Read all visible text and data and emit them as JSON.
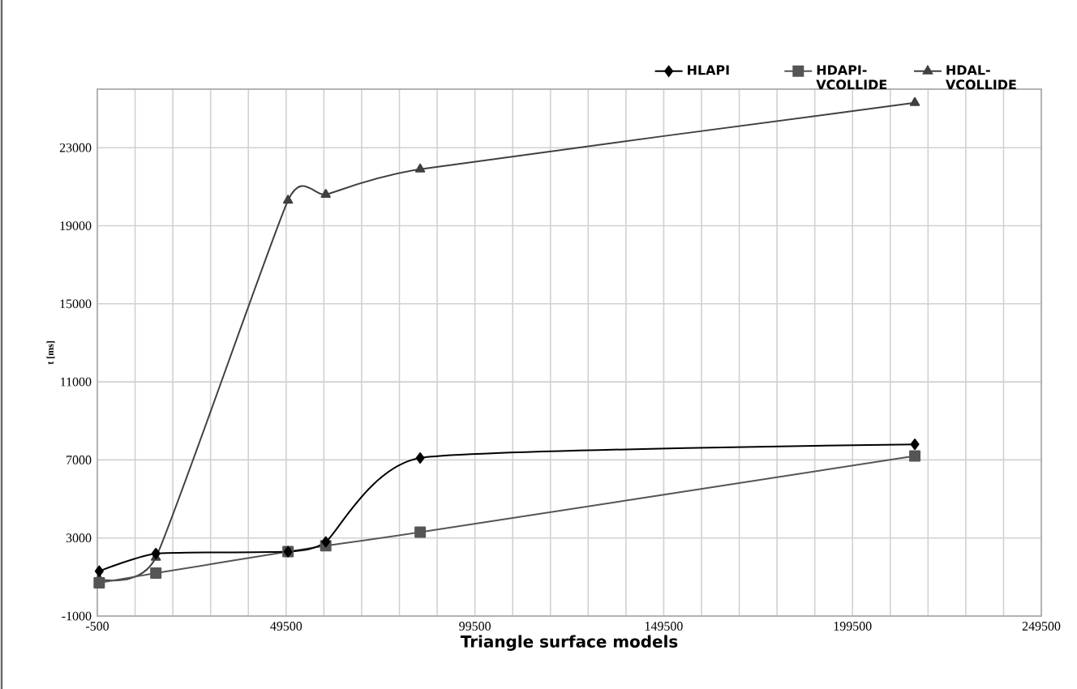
{
  "chart_data": {
    "type": "line",
    "xlabel": "Triangle surface models",
    "ylabel": "t [ms]",
    "x": [
      0,
      15000,
      50000,
      60000,
      85000,
      216000
    ],
    "series": [
      {
        "name": "HLAPI",
        "color": "#000000",
        "marker": "diamond",
        "values": [
          1300,
          2200,
          2300,
          2800,
          7100,
          7800
        ]
      },
      {
        "name": "HDAPI-VCOLLIDE",
        "color": "#555555",
        "marker": "square",
        "values": [
          700,
          1200,
          2300,
          2600,
          3300,
          7200
        ]
      },
      {
        "name": "HDAL-VCOLLIDE",
        "color": "#404040",
        "marker": "triangle",
        "values": [
          900,
          2000,
          20300,
          20600,
          21900,
          25300
        ]
      }
    ],
    "xlim": [
      -500,
      249500
    ],
    "ylim": [
      -1000,
      26000
    ],
    "xticks": [
      -500,
      49500,
      99500,
      149500,
      199500,
      249500
    ],
    "yticks": [
      -1000,
      3000,
      7000,
      11000,
      15000,
      19000,
      23000
    ],
    "grid": true,
    "legend": "top right"
  }
}
